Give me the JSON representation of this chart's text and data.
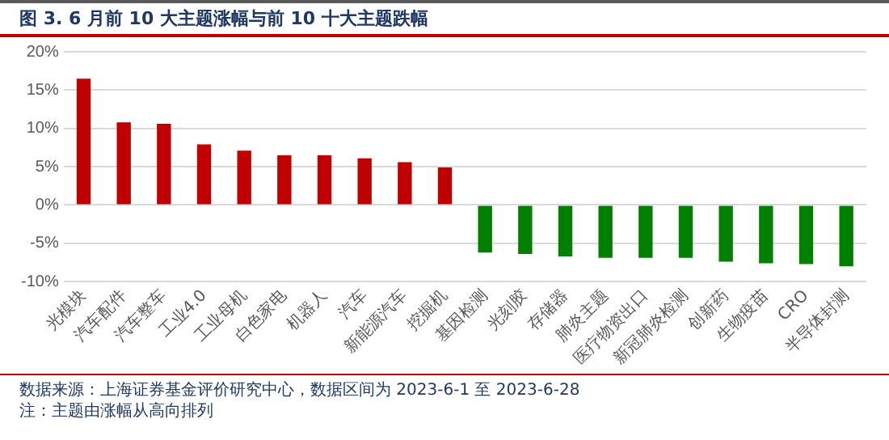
{
  "chart_data": {
    "type": "bar",
    "title": "图 3. 6 月前 10 大主题涨幅与前 10 十大主题跌幅",
    "categories": [
      "光模块",
      "汽车配件",
      "汽车整车",
      "工业4.0",
      "工业母机",
      "白色家电",
      "机器人",
      "汽车",
      "新能源汽车",
      "挖掘机",
      "基因检测",
      "光刻胶",
      "存储器",
      "肺炎主题",
      "医疗物资出口",
      "新冠肺炎检测",
      "创新药",
      "生物疫苗",
      "CRO",
      "半导体封测"
    ],
    "values": [
      16.5,
      10.8,
      10.6,
      7.9,
      7.1,
      6.5,
      6.5,
      6.1,
      5.6,
      4.9,
      -6.2,
      -6.4,
      -6.7,
      -6.9,
      -6.9,
      -6.9,
      -7.4,
      -7.6,
      -7.7,
      -8.0
    ],
    "colors": [
      "#c00000",
      "#c00000",
      "#c00000",
      "#c00000",
      "#c00000",
      "#c00000",
      "#c00000",
      "#c00000",
      "#c00000",
      "#c00000",
      "#008000",
      "#008000",
      "#008000",
      "#008000",
      "#008000",
      "#008000",
      "#008000",
      "#008000",
      "#008000",
      "#008000"
    ],
    "ylim": [
      -10,
      20
    ],
    "yticks": [
      {
        "value": -10,
        "label": "-10%"
      },
      {
        "value": -5,
        "label": "-5%"
      },
      {
        "value": 0,
        "label": "0%"
      },
      {
        "value": 5,
        "label": "5%"
      },
      {
        "value": 10,
        "label": "10%"
      },
      {
        "value": 15,
        "label": "15%"
      },
      {
        "value": 20,
        "label": "20%"
      }
    ],
    "grid": "y",
    "annotations": [
      "数据来源：上海证券基金评价研究中心，数据区间为 2023-6-1 至 2023-6-28",
      "注：主题由涨幅从高向排列"
    ]
  }
}
